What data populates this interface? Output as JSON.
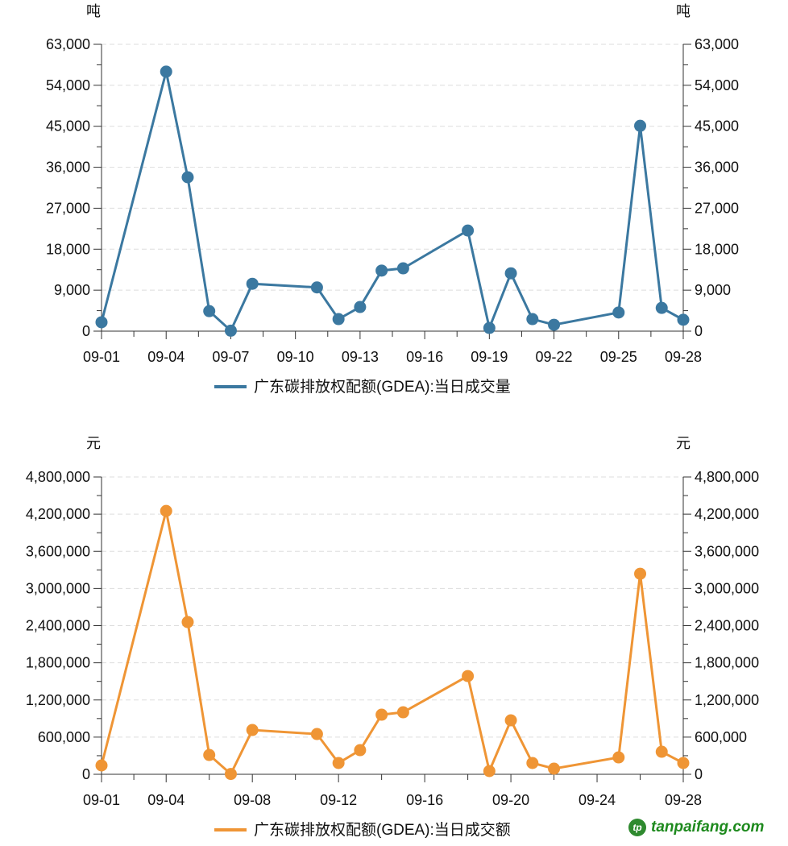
{
  "chart_data": [
    {
      "type": "line",
      "unit_left": "吨",
      "unit_right": "吨",
      "legend": "广东碳排放权配额(GDEA):当日成交量",
      "color": "#3b78a0",
      "ylim": [
        0,
        63000
      ],
      "yticks": [
        "0",
        "9,000",
        "18,000",
        "27,000",
        "36,000",
        "45,000",
        "54,000",
        "63,000"
      ],
      "xtick_days": [
        1,
        4,
        7,
        10,
        13,
        16,
        19,
        22,
        25,
        28
      ],
      "xticks": [
        "09-01",
        "09-04",
        "09-07",
        "09-10",
        "09-13",
        "09-16",
        "09-19",
        "09-22",
        "09-25",
        "09-28"
      ],
      "xlim": [
        1,
        28
      ],
      "x": [
        1,
        4,
        5,
        6,
        7,
        8,
        11,
        12,
        13,
        14,
        15,
        18,
        19,
        20,
        21,
        22,
        25,
        26,
        27,
        28
      ],
      "dates": [
        "09-01",
        "09-04",
        "09-05",
        "09-06",
        "09-07",
        "09-08",
        "09-11",
        "09-12",
        "09-13",
        "09-14",
        "09-15",
        "09-18",
        "09-19",
        "09-20",
        "09-21",
        "09-22",
        "09-25",
        "09-26",
        "09-27",
        "09-28"
      ],
      "values": [
        1950,
        57000,
        33800,
        4400,
        100,
        10400,
        9600,
        2650,
        5300,
        13300,
        13800,
        22100,
        700,
        12700,
        2650,
        1400,
        4100,
        45100,
        5100,
        2500
      ]
    },
    {
      "type": "line",
      "unit_left": "元",
      "unit_right": "元",
      "legend": "广东碳排放权配额(GDEA):当日成交额",
      "color": "#ef9535",
      "ylim": [
        0,
        4800000
      ],
      "yticks": [
        "0",
        "600,000",
        "1,200,000",
        "1,800,000",
        "2,400,000",
        "3,000,000",
        "3,600,000",
        "4,200,000",
        "4,800,000"
      ],
      "xtick_days": [
        1,
        4,
        8,
        12,
        16,
        20,
        24,
        28
      ],
      "xticks": [
        "09-01",
        "09-04",
        "09-08",
        "09-12",
        "09-16",
        "09-20",
        "09-24",
        "09-28"
      ],
      "xlim": [
        1,
        28
      ],
      "x": [
        1,
        4,
        5,
        6,
        7,
        8,
        11,
        12,
        13,
        14,
        15,
        18,
        19,
        20,
        21,
        22,
        25,
        26,
        27,
        28
      ],
      "dates": [
        "09-01",
        "09-04",
        "09-05",
        "09-06",
        "09-07",
        "09-08",
        "09-11",
        "09-12",
        "09-13",
        "09-14",
        "09-15",
        "09-18",
        "09-19",
        "09-20",
        "09-21",
        "09-22",
        "09-25",
        "09-26",
        "09-27",
        "09-28"
      ],
      "values": [
        143000,
        4252000,
        2458000,
        312000,
        5000,
        715000,
        650000,
        182000,
        390000,
        962000,
        1001000,
        1586000,
        52000,
        871000,
        182000,
        91000,
        273000,
        3238000,
        364000,
        182000
      ]
    }
  ],
  "watermark": "tanpaifang.com"
}
